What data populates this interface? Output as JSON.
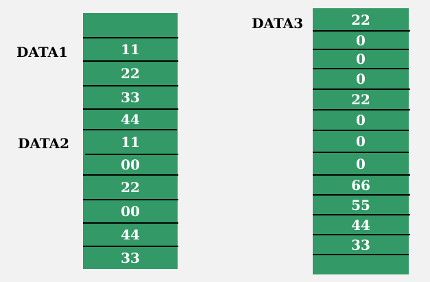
{
  "labels": {
    "data1": "DATA1",
    "data2": "DATA2",
    "data3": "DATA3"
  },
  "memory_left": [
    "",
    "11",
    "22",
    "33",
    "44",
    "11",
    "00",
    "22",
    "00",
    "44",
    "33"
  ],
  "memory_right": [
    "22",
    "0",
    "0",
    "0",
    "22",
    "0",
    "0",
    "0",
    "66",
    "55",
    "44",
    "33",
    ""
  ],
  "colors": {
    "cell_fill": "#339966",
    "cell_text": "#ffffff",
    "divider": "#000000",
    "background": "#f2f2f2"
  }
}
